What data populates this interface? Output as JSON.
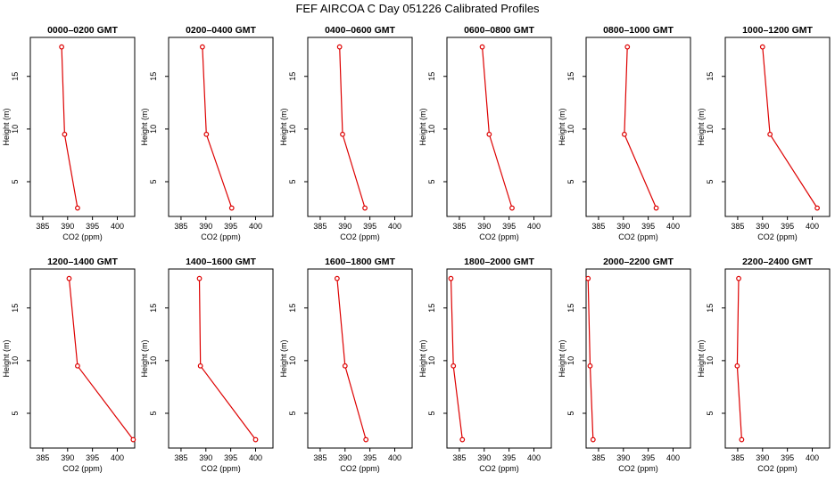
{
  "figure_title": "FEF AIRCOA C  Day 051226  Calibrated Profiles",
  "colors": {
    "series": "#dd0000",
    "axes": "#000000",
    "background": "#ffffff"
  },
  "chart_data": [
    {
      "type": "line",
      "title": "0000–0200 GMT",
      "xlabel": "CO2 (ppm)",
      "ylabel": "Height (m)",
      "xlim": [
        382.5,
        403.5
      ],
      "ylim": [
        1.7,
        18.7
      ],
      "xticks": [
        385,
        390,
        395,
        400
      ],
      "yticks": [
        5,
        10,
        15
      ],
      "x": [
        388.8,
        389.4,
        392.0
      ],
      "y": [
        17.8,
        9.5,
        2.5
      ]
    },
    {
      "type": "line",
      "title": "0200–0400 GMT",
      "xlabel": "CO2 (ppm)",
      "ylabel": "Height (m)",
      "xlim": [
        382.5,
        403.5
      ],
      "ylim": [
        1.7,
        18.7
      ],
      "xticks": [
        385,
        390,
        395,
        400
      ],
      "yticks": [
        5,
        10,
        15
      ],
      "x": [
        389.3,
        390.1,
        395.2
      ],
      "y": [
        17.8,
        9.5,
        2.5
      ]
    },
    {
      "type": "line",
      "title": "0400–0600 GMT",
      "xlabel": "CO2 (ppm)",
      "ylabel": "Height (m)",
      "xlim": [
        382.5,
        403.5
      ],
      "ylim": [
        1.7,
        18.7
      ],
      "xticks": [
        385,
        390,
        395,
        400
      ],
      "yticks": [
        5,
        10,
        15
      ],
      "x": [
        388.9,
        389.5,
        394.0
      ],
      "y": [
        17.8,
        9.5,
        2.5
      ]
    },
    {
      "type": "line",
      "title": "0600–0800 GMT",
      "xlabel": "CO2 (ppm)",
      "ylabel": "Height (m)",
      "xlim": [
        382.5,
        403.5
      ],
      "ylim": [
        1.7,
        18.7
      ],
      "xticks": [
        385,
        390,
        395,
        400
      ],
      "yticks": [
        5,
        10,
        15
      ],
      "x": [
        389.6,
        391.0,
        395.6
      ],
      "y": [
        17.8,
        9.5,
        2.5
      ]
    },
    {
      "type": "line",
      "title": "0800–1000 GMT",
      "xlabel": "CO2 (ppm)",
      "ylabel": "Height (m)",
      "xlim": [
        382.5,
        403.5
      ],
      "ylim": [
        1.7,
        18.7
      ],
      "xticks": [
        385,
        390,
        395,
        400
      ],
      "yticks": [
        5,
        10,
        15
      ],
      "x": [
        390.8,
        390.2,
        396.6
      ],
      "y": [
        17.8,
        9.5,
        2.5
      ]
    },
    {
      "type": "line",
      "title": "1000–1200 GMT",
      "xlabel": "CO2 (ppm)",
      "ylabel": "Height (m)",
      "xlim": [
        382.5,
        403.5
      ],
      "ylim": [
        1.7,
        18.7
      ],
      "xticks": [
        385,
        390,
        395,
        400
      ],
      "yticks": [
        5,
        10,
        15
      ],
      "x": [
        390.0,
        391.5,
        401.0
      ],
      "y": [
        17.8,
        9.5,
        2.5
      ]
    },
    {
      "type": "line",
      "title": "1200–1400 GMT",
      "xlabel": "CO2 (ppm)",
      "ylabel": "Height (m)",
      "xlim": [
        382.5,
        403.5
      ],
      "ylim": [
        1.7,
        18.7
      ],
      "xticks": [
        385,
        390,
        395,
        400
      ],
      "yticks": [
        5,
        10,
        15
      ],
      "x": [
        390.3,
        392.0,
        403.2
      ],
      "y": [
        17.8,
        9.5,
        2.5
      ]
    },
    {
      "type": "line",
      "title": "1400–1600 GMT",
      "xlabel": "CO2 (ppm)",
      "ylabel": "Height (m)",
      "xlim": [
        382.5,
        403.5
      ],
      "ylim": [
        1.7,
        18.7
      ],
      "xticks": [
        385,
        390,
        395,
        400
      ],
      "yticks": [
        5,
        10,
        15
      ],
      "x": [
        388.7,
        388.9,
        400.0
      ],
      "y": [
        17.8,
        9.5,
        2.5
      ]
    },
    {
      "type": "line",
      "title": "1600–1800 GMT",
      "xlabel": "CO2 (ppm)",
      "ylabel": "Height (m)",
      "xlim": [
        382.5,
        403.5
      ],
      "ylim": [
        1.7,
        18.7
      ],
      "xticks": [
        385,
        390,
        395,
        400
      ],
      "yticks": [
        5,
        10,
        15
      ],
      "x": [
        388.4,
        390.0,
        394.2
      ],
      "y": [
        17.8,
        9.5,
        2.5
      ]
    },
    {
      "type": "line",
      "title": "1800–2000 GMT",
      "xlabel": "CO2 (ppm)",
      "ylabel": "Height (m)",
      "xlim": [
        382.5,
        403.5
      ],
      "ylim": [
        1.7,
        18.7
      ],
      "xticks": [
        385,
        390,
        395,
        400
      ],
      "yticks": [
        5,
        10,
        15
      ],
      "x": [
        383.3,
        383.8,
        385.6
      ],
      "y": [
        17.8,
        9.5,
        2.5
      ]
    },
    {
      "type": "line",
      "title": "2000–2200 GMT",
      "xlabel": "CO2 (ppm)",
      "ylabel": "Height (m)",
      "xlim": [
        382.5,
        403.5
      ],
      "ylim": [
        1.7,
        18.7
      ],
      "xticks": [
        385,
        390,
        395,
        400
      ],
      "yticks": [
        5,
        10,
        15
      ],
      "x": [
        382.9,
        383.3,
        383.9
      ],
      "y": [
        17.8,
        9.5,
        2.5
      ]
    },
    {
      "type": "line",
      "title": "2200–2400 GMT",
      "xlabel": "CO2 (ppm)",
      "ylabel": "Height (m)",
      "xlim": [
        382.5,
        403.5
      ],
      "ylim": [
        1.7,
        18.7
      ],
      "xticks": [
        385,
        390,
        395,
        400
      ],
      "yticks": [
        5,
        10,
        15
      ],
      "x": [
        385.2,
        384.9,
        385.8
      ],
      "y": [
        17.8,
        9.5,
        2.5
      ]
    }
  ]
}
